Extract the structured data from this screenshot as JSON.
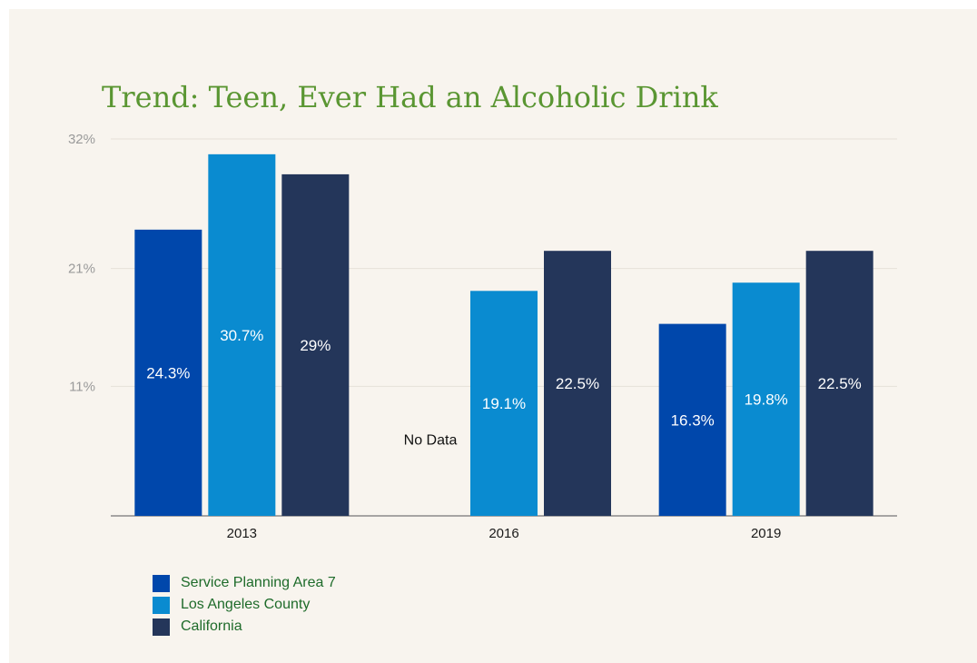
{
  "chart_data": {
    "type": "bar",
    "title": "Trend: Teen, Ever Had an Alcoholic Drink",
    "categories": [
      "2013",
      "2016",
      "2019"
    ],
    "series": [
      {
        "name": "Service Planning Area 7",
        "color": "#0047ab",
        "values": [
          24.3,
          null,
          16.3
        ],
        "labels": [
          "24.3%",
          "",
          "16.3%"
        ]
      },
      {
        "name": "Los Angeles County",
        "color": "#0a8bd0",
        "values": [
          30.7,
          19.1,
          19.8
        ],
        "labels": [
          "30.7%",
          "19.1%",
          "19.8%"
        ]
      },
      {
        "name": "California",
        "color": "#24365a",
        "values": [
          29,
          22.5,
          22.5
        ],
        "labels": [
          "29%",
          "22.5%",
          "22.5%"
        ]
      }
    ],
    "no_data_label": "No Data",
    "y_ticks": [
      {
        "value": 32,
        "label": "32%"
      },
      {
        "value": 21,
        "label": "21%"
      },
      {
        "value": 11,
        "label": "11%"
      }
    ],
    "ylim": [
      0,
      32
    ],
    "grid": true,
    "legend_position": "bottom-left"
  }
}
